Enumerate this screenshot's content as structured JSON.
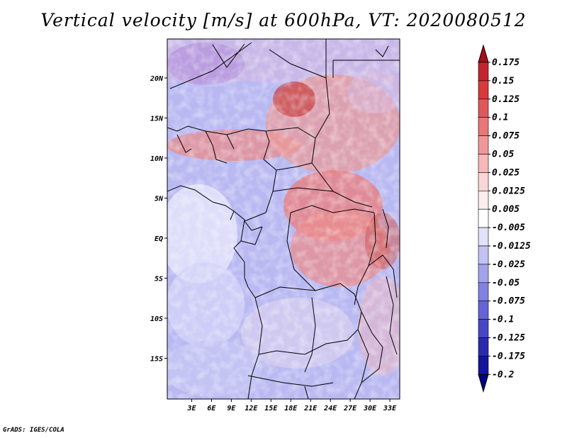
{
  "title": "Vertical velocity [m/s] at 600hPa, VT: 2020080512",
  "footer": "GrADS: IGES/COLA",
  "map": {
    "lat_labels": [
      "20N",
      "15N",
      "10N",
      "5N",
      "EQ",
      "5S",
      "10S",
      "15S"
    ],
    "lon_labels": [
      "3E",
      "6E",
      "9E",
      "12E",
      "15E",
      "18E",
      "21E",
      "24E",
      "27E",
      "30E",
      "33E"
    ],
    "lat_values": [
      20,
      15,
      10,
      5,
      0,
      -5,
      -10,
      -15
    ],
    "lon_values": [
      3,
      6,
      9,
      12,
      15,
      18,
      21,
      24,
      27,
      30,
      33
    ]
  },
  "colorbar": {
    "labels": [
      "0.175",
      "0.15",
      "0.125",
      "0.1",
      "0.075",
      "0.05",
      "0.025",
      "0.0125",
      "0.005",
      "-0.005",
      "-0.0125",
      "-0.025",
      "-0.05",
      "-0.075",
      "-0.1",
      "-0.125",
      "-0.175",
      "-0.2"
    ],
    "colors": [
      "#a50f15",
      "#c0262d",
      "#d73a3a",
      "#e0585a",
      "#e97777",
      "#f09797",
      "#f6b8b8",
      "#fad6d6",
      "#fdeded",
      "#ffffff",
      "#e2e2fb",
      "#c3c3f3",
      "#a3a3ec",
      "#8282e2",
      "#6464d6",
      "#4646c6",
      "#2a2ab0",
      "#14149a",
      "#000080"
    ]
  }
}
